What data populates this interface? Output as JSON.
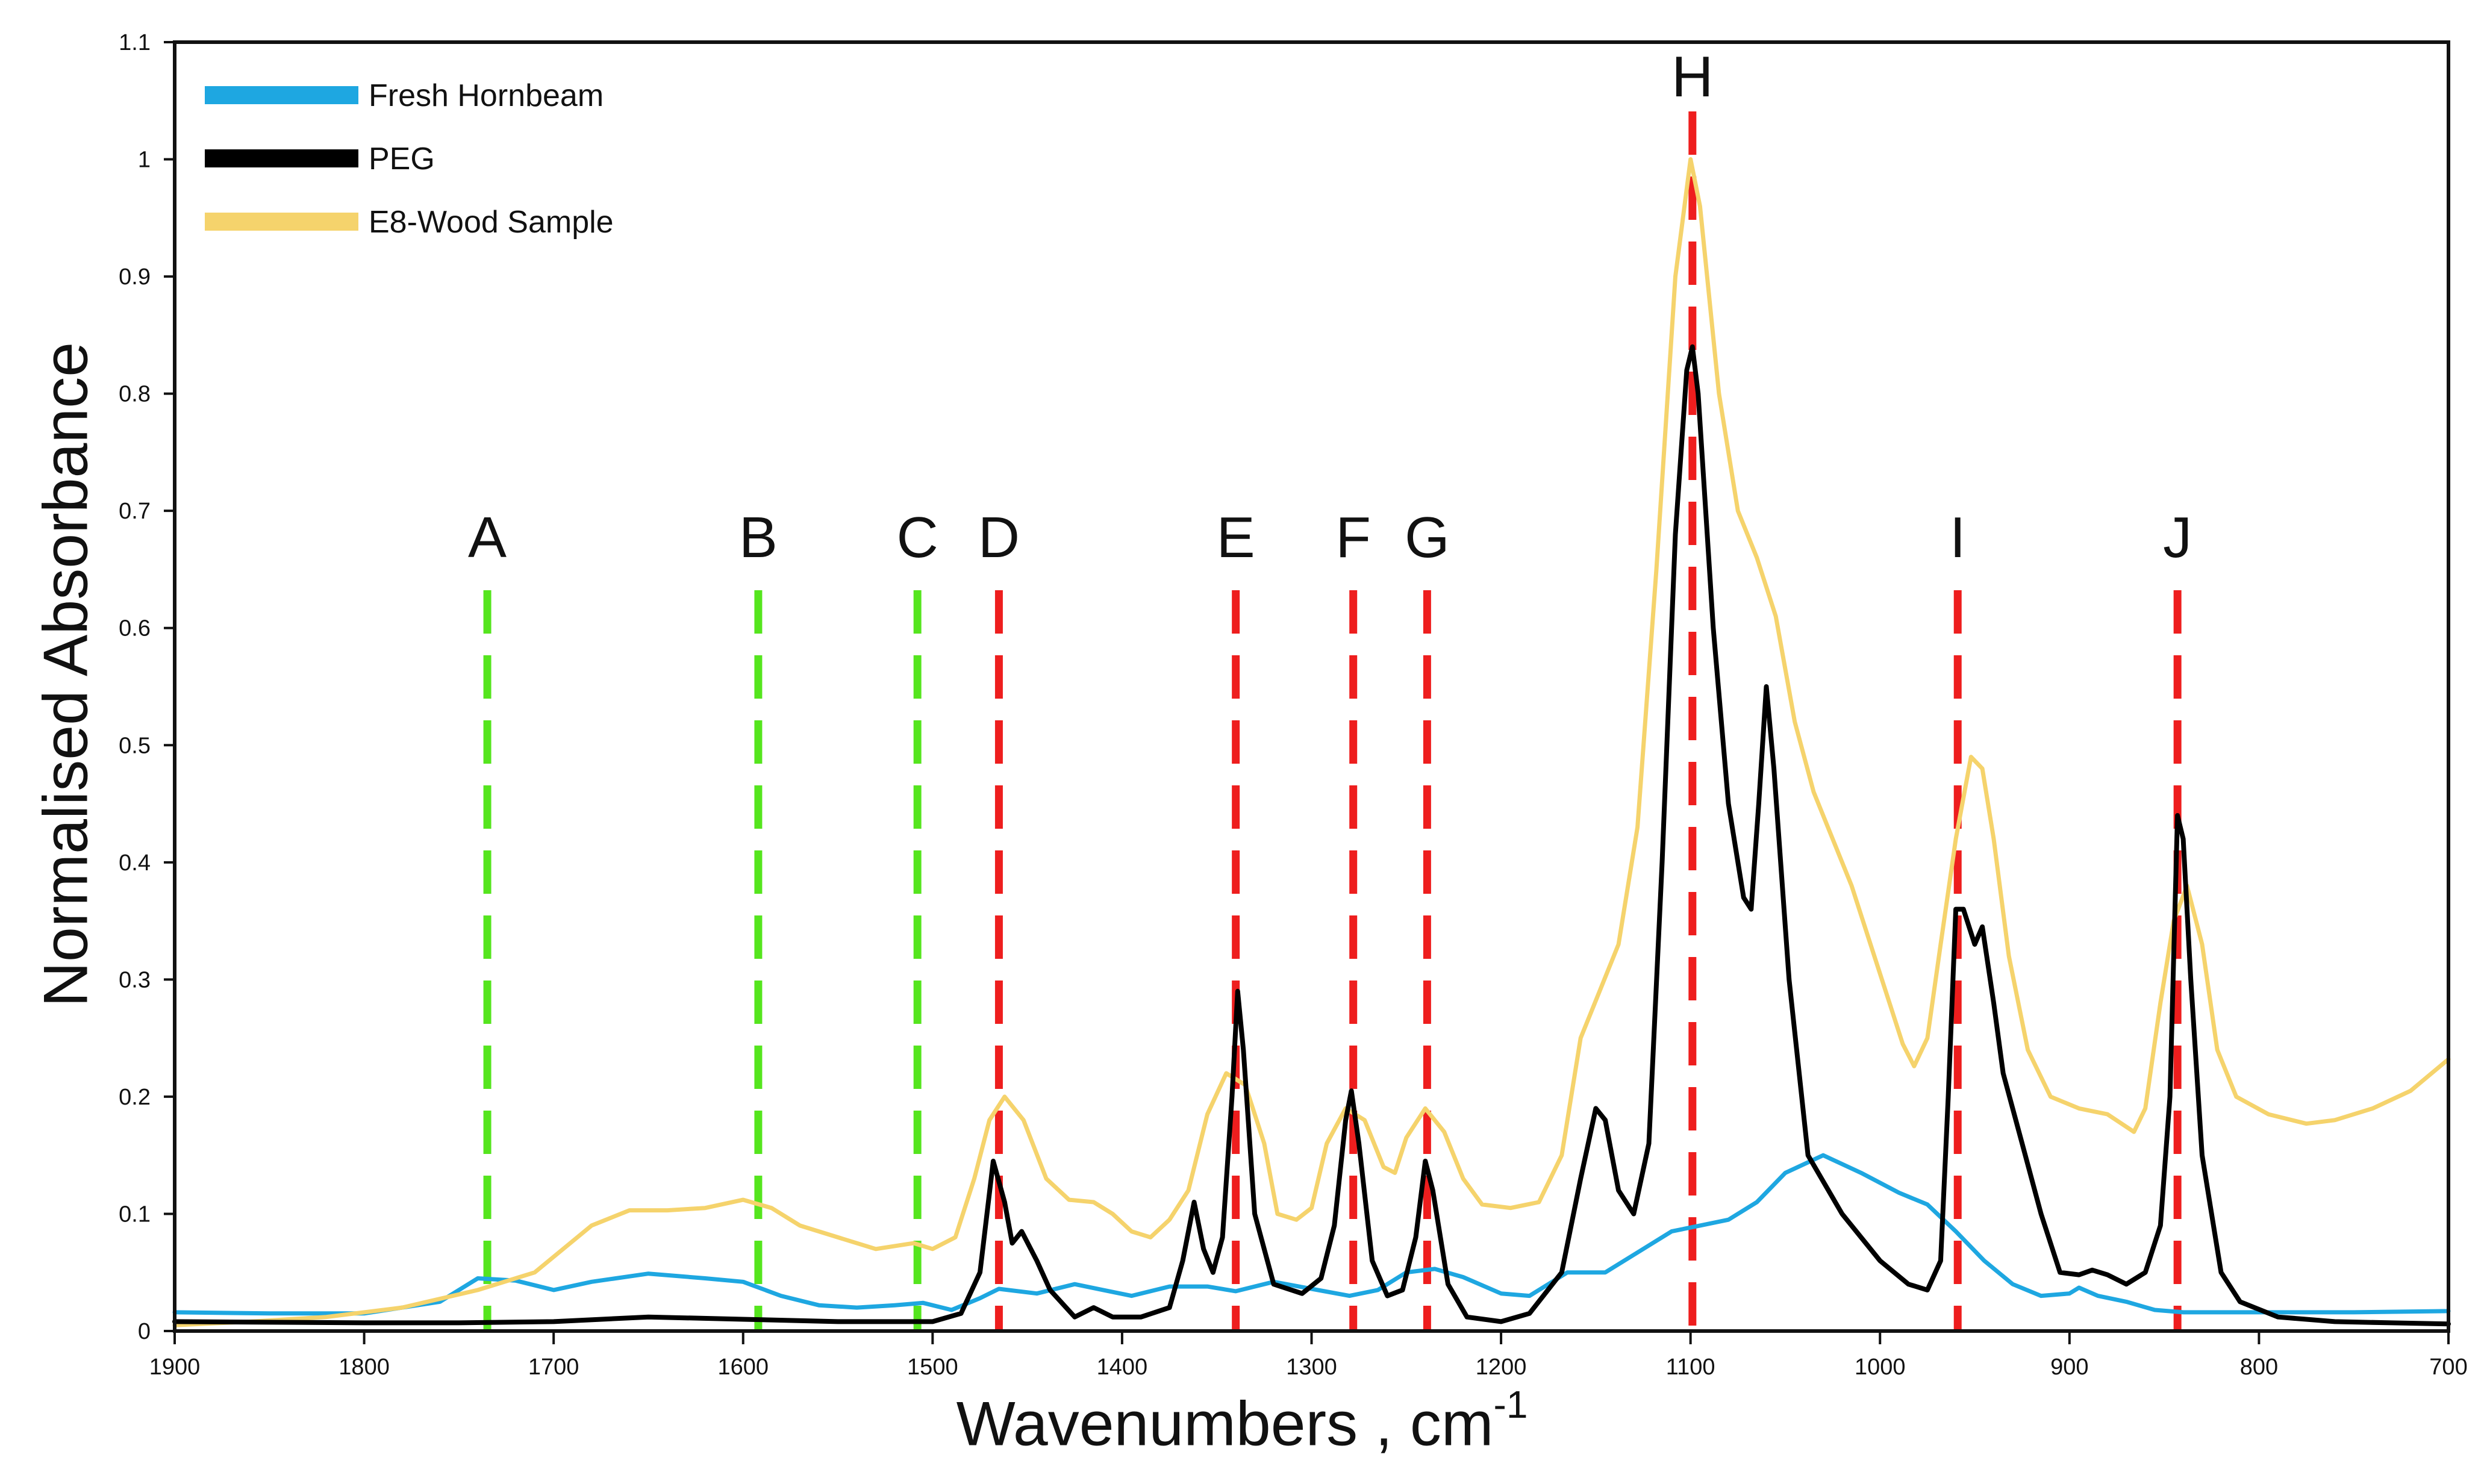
{
  "chart_data": {
    "type": "line",
    "xlabel": "Wavenumbers , cm",
    "xlabel_superscript": "-1",
    "ylabel": "Normalised Absorbance",
    "xlim": [
      1900,
      700
    ],
    "ylim": [
      0,
      1.1
    ],
    "x_ticks": [
      1900,
      1800,
      1700,
      1600,
      1500,
      1400,
      1300,
      1200,
      1100,
      1000,
      900,
      800,
      700
    ],
    "y_ticks": [
      0,
      0.1,
      0.2,
      0.3,
      0.4,
      0.5,
      0.6,
      0.7,
      0.8,
      0.9,
      1,
      1.1
    ],
    "y_tick_labels": [
      "0",
      "0.1",
      "0.2",
      "0.3",
      "0.4",
      "0.5",
      "0.6",
      "0.7",
      "0.8",
      "0.9",
      "1",
      "1.1"
    ],
    "legend_position": "top-left",
    "series": [
      {
        "name": "Fresh Hornbeam",
        "color": "#1ea7e1",
        "points": [
          [
            1900,
            0.016
          ],
          [
            1850,
            0.015
          ],
          [
            1800,
            0.015
          ],
          [
            1760,
            0.025
          ],
          [
            1740,
            0.045
          ],
          [
            1720,
            0.043
          ],
          [
            1700,
            0.035
          ],
          [
            1680,
            0.042
          ],
          [
            1650,
            0.049
          ],
          [
            1620,
            0.045
          ],
          [
            1600,
            0.042
          ],
          [
            1580,
            0.03
          ],
          [
            1560,
            0.022
          ],
          [
            1540,
            0.02
          ],
          [
            1520,
            0.022
          ],
          [
            1505,
            0.024
          ],
          [
            1490,
            0.018
          ],
          [
            1475,
            0.028
          ],
          [
            1465,
            0.036
          ],
          [
            1445,
            0.032
          ],
          [
            1425,
            0.04
          ],
          [
            1410,
            0.035
          ],
          [
            1395,
            0.03
          ],
          [
            1375,
            0.038
          ],
          [
            1355,
            0.038
          ],
          [
            1340,
            0.034
          ],
          [
            1320,
            0.042
          ],
          [
            1300,
            0.036
          ],
          [
            1280,
            0.03
          ],
          [
            1265,
            0.035
          ],
          [
            1250,
            0.05
          ],
          [
            1235,
            0.053
          ],
          [
            1220,
            0.046
          ],
          [
            1200,
            0.032
          ],
          [
            1185,
            0.03
          ],
          [
            1165,
            0.05
          ],
          [
            1145,
            0.05
          ],
          [
            1125,
            0.07
          ],
          [
            1110,
            0.085
          ],
          [
            1095,
            0.09
          ],
          [
            1080,
            0.095
          ],
          [
            1065,
            0.11
          ],
          [
            1050,
            0.135
          ],
          [
            1030,
            0.15
          ],
          [
            1010,
            0.135
          ],
          [
            990,
            0.118
          ],
          [
            975,
            0.108
          ],
          [
            960,
            0.085
          ],
          [
            945,
            0.06
          ],
          [
            930,
            0.04
          ],
          [
            915,
            0.03
          ],
          [
            900,
            0.032
          ],
          [
            895,
            0.037
          ],
          [
            885,
            0.03
          ],
          [
            870,
            0.025
          ],
          [
            855,
            0.018
          ],
          [
            840,
            0.016
          ],
          [
            800,
            0.016
          ],
          [
            750,
            0.016
          ],
          [
            700,
            0.017
          ]
        ]
      },
      {
        "name": "PEG",
        "color": "#000000",
        "points": [
          [
            1900,
            0.008
          ],
          [
            1800,
            0.007
          ],
          [
            1750,
            0.007
          ],
          [
            1700,
            0.008
          ],
          [
            1650,
            0.012
          ],
          [
            1600,
            0.01
          ],
          [
            1550,
            0.008
          ],
          [
            1500,
            0.008
          ],
          [
            1485,
            0.015
          ],
          [
            1475,
            0.05
          ],
          [
            1468,
            0.145
          ],
          [
            1462,
            0.11
          ],
          [
            1458,
            0.075
          ],
          [
            1453,
            0.085
          ],
          [
            1445,
            0.06
          ],
          [
            1438,
            0.035
          ],
          [
            1425,
            0.012
          ],
          [
            1415,
            0.02
          ],
          [
            1405,
            0.012
          ],
          [
            1390,
            0.012
          ],
          [
            1375,
            0.02
          ],
          [
            1368,
            0.06
          ],
          [
            1362,
            0.11
          ],
          [
            1357,
            0.07
          ],
          [
            1352,
            0.05
          ],
          [
            1347,
            0.08
          ],
          [
            1342,
            0.2
          ],
          [
            1339,
            0.29
          ],
          [
            1336,
            0.24
          ],
          [
            1330,
            0.1
          ],
          [
            1320,
            0.04
          ],
          [
            1305,
            0.032
          ],
          [
            1295,
            0.045
          ],
          [
            1288,
            0.09
          ],
          [
            1282,
            0.18
          ],
          [
            1279,
            0.205
          ],
          [
            1275,
            0.16
          ],
          [
            1268,
            0.06
          ],
          [
            1260,
            0.03
          ],
          [
            1252,
            0.035
          ],
          [
            1245,
            0.08
          ],
          [
            1240,
            0.145
          ],
          [
            1236,
            0.12
          ],
          [
            1228,
            0.04
          ],
          [
            1218,
            0.012
          ],
          [
            1200,
            0.008
          ],
          [
            1185,
            0.015
          ],
          [
            1168,
            0.05
          ],
          [
            1158,
            0.13
          ],
          [
            1150,
            0.19
          ],
          [
            1145,
            0.18
          ],
          [
            1138,
            0.12
          ],
          [
            1130,
            0.1
          ],
          [
            1122,
            0.16
          ],
          [
            1115,
            0.4
          ],
          [
            1108,
            0.68
          ],
          [
            1102,
            0.82
          ],
          [
            1099,
            0.84
          ],
          [
            1096,
            0.8
          ],
          [
            1088,
            0.6
          ],
          [
            1080,
            0.45
          ],
          [
            1072,
            0.37
          ],
          [
            1068,
            0.36
          ],
          [
            1064,
            0.45
          ],
          [
            1060,
            0.55
          ],
          [
            1056,
            0.48
          ],
          [
            1048,
            0.3
          ],
          [
            1038,
            0.15
          ],
          [
            1020,
            0.1
          ],
          [
            1000,
            0.06
          ],
          [
            985,
            0.04
          ],
          [
            975,
            0.035
          ],
          [
            968,
            0.06
          ],
          [
            964,
            0.2
          ],
          [
            960,
            0.36
          ],
          [
            956,
            0.36
          ],
          [
            950,
            0.33
          ],
          [
            946,
            0.345
          ],
          [
            940,
            0.28
          ],
          [
            935,
            0.22
          ],
          [
            925,
            0.16
          ],
          [
            915,
            0.1
          ],
          [
            905,
            0.05
          ],
          [
            895,
            0.048
          ],
          [
            888,
            0.052
          ],
          [
            880,
            0.048
          ],
          [
            870,
            0.04
          ],
          [
            860,
            0.05
          ],
          [
            852,
            0.09
          ],
          [
            847,
            0.2
          ],
          [
            843,
            0.44
          ],
          [
            840,
            0.42
          ],
          [
            836,
            0.3
          ],
          [
            830,
            0.15
          ],
          [
            820,
            0.05
          ],
          [
            810,
            0.025
          ],
          [
            790,
            0.012
          ],
          [
            760,
            0.008
          ],
          [
            730,
            0.007
          ],
          [
            700,
            0.006
          ]
        ]
      },
      {
        "name": "E8-Wood Sample",
        "color": "#f5d36c",
        "points": [
          [
            1900,
            0.005
          ],
          [
            1860,
            0.008
          ],
          [
            1820,
            0.012
          ],
          [
            1780,
            0.02
          ],
          [
            1740,
            0.035
          ],
          [
            1710,
            0.05
          ],
          [
            1680,
            0.09
          ],
          [
            1660,
            0.103
          ],
          [
            1640,
            0.103
          ],
          [
            1620,
            0.105
          ],
          [
            1600,
            0.112
          ],
          [
            1585,
            0.105
          ],
          [
            1570,
            0.09
          ],
          [
            1550,
            0.08
          ],
          [
            1530,
            0.07
          ],
          [
            1510,
            0.075
          ],
          [
            1500,
            0.07
          ],
          [
            1488,
            0.08
          ],
          [
            1478,
            0.13
          ],
          [
            1470,
            0.18
          ],
          [
            1462,
            0.2
          ],
          [
            1452,
            0.18
          ],
          [
            1440,
            0.13
          ],
          [
            1428,
            0.112
          ],
          [
            1415,
            0.11
          ],
          [
            1405,
            0.1
          ],
          [
            1395,
            0.085
          ],
          [
            1385,
            0.08
          ],
          [
            1375,
            0.095
          ],
          [
            1365,
            0.12
          ],
          [
            1355,
            0.185
          ],
          [
            1345,
            0.22
          ],
          [
            1335,
            0.21
          ],
          [
            1325,
            0.16
          ],
          [
            1318,
            0.1
          ],
          [
            1308,
            0.095
          ],
          [
            1300,
            0.105
          ],
          [
            1292,
            0.16
          ],
          [
            1282,
            0.19
          ],
          [
            1272,
            0.18
          ],
          [
            1262,
            0.14
          ],
          [
            1256,
            0.135
          ],
          [
            1250,
            0.165
          ],
          [
            1240,
            0.19
          ],
          [
            1230,
            0.17
          ],
          [
            1220,
            0.13
          ],
          [
            1210,
            0.108
          ],
          [
            1195,
            0.105
          ],
          [
            1180,
            0.11
          ],
          [
            1168,
            0.15
          ],
          [
            1158,
            0.25
          ],
          [
            1148,
            0.29
          ],
          [
            1138,
            0.33
          ],
          [
            1128,
            0.43
          ],
          [
            1118,
            0.65
          ],
          [
            1108,
            0.9
          ],
          [
            1100,
            1.0
          ],
          [
            1095,
            0.96
          ],
          [
            1085,
            0.8
          ],
          [
            1075,
            0.7
          ],
          [
            1065,
            0.66
          ],
          [
            1055,
            0.61
          ],
          [
            1045,
            0.52
          ],
          [
            1035,
            0.46
          ],
          [
            1025,
            0.42
          ],
          [
            1015,
            0.38
          ],
          [
            1005,
            0.33
          ],
          [
            995,
            0.28
          ],
          [
            988,
            0.245
          ],
          [
            982,
            0.226
          ],
          [
            975,
            0.25
          ],
          [
            968,
            0.33
          ],
          [
            960,
            0.42
          ],
          [
            952,
            0.49
          ],
          [
            946,
            0.48
          ],
          [
            940,
            0.42
          ],
          [
            932,
            0.32
          ],
          [
            922,
            0.24
          ],
          [
            910,
            0.2
          ],
          [
            895,
            0.19
          ],
          [
            880,
            0.185
          ],
          [
            866,
            0.17
          ],
          [
            860,
            0.19
          ],
          [
            852,
            0.28
          ],
          [
            845,
            0.35
          ],
          [
            838,
            0.38
          ],
          [
            830,
            0.33
          ],
          [
            822,
            0.24
          ],
          [
            812,
            0.2
          ],
          [
            795,
            0.185
          ],
          [
            775,
            0.177
          ],
          [
            760,
            0.18
          ],
          [
            740,
            0.19
          ],
          [
            720,
            0.205
          ],
          [
            700,
            0.232
          ]
        ]
      }
    ],
    "markers": [
      {
        "label": "A",
        "x": 1735,
        "color": "#55e51e"
      },
      {
        "label": "B",
        "x": 1592,
        "color": "#55e51e"
      },
      {
        "label": "C",
        "x": 1508,
        "color": "#55e51e"
      },
      {
        "label": "D",
        "x": 1465,
        "color": "#ee1e1e"
      },
      {
        "label": "E",
        "x": 1340,
        "color": "#ee1e1e"
      },
      {
        "label": "F",
        "x": 1278,
        "color": "#ee1e1e"
      },
      {
        "label": "G",
        "x": 1239,
        "color": "#ee1e1e"
      },
      {
        "label": "H",
        "x": 1099,
        "color": "#ee1e1e"
      },
      {
        "label": "I",
        "x": 959,
        "color": "#ee1e1e"
      },
      {
        "label": "J",
        "x": 843,
        "color": "#ee1e1e"
      }
    ]
  }
}
